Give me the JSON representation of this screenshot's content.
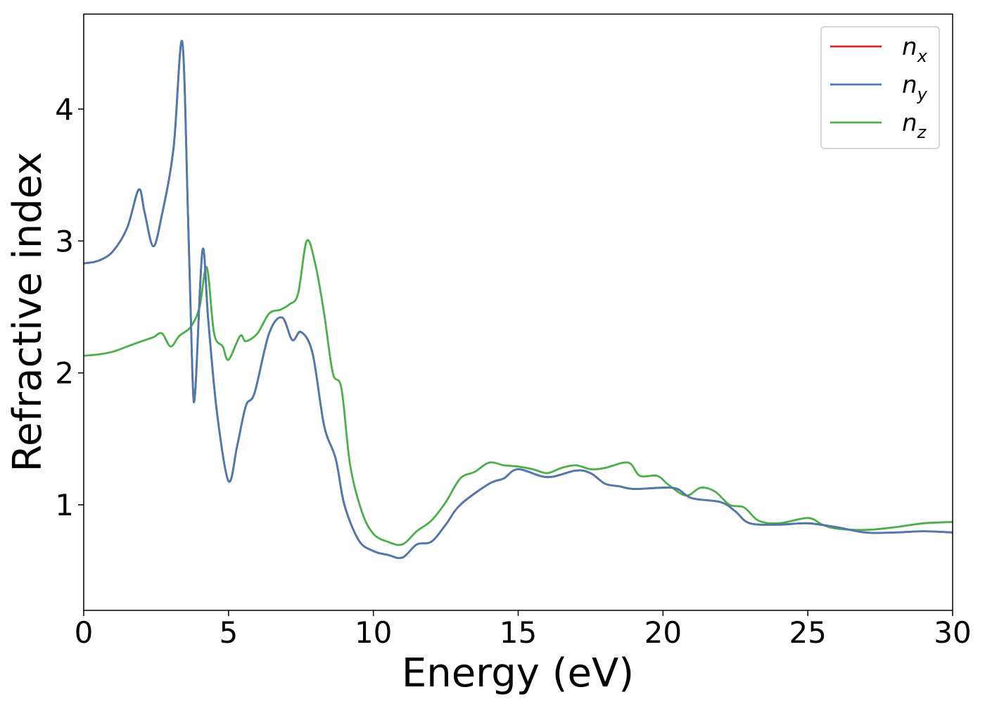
{
  "chart_data": {
    "type": "line",
    "title": "",
    "xlabel": "Energy (eV)",
    "ylabel": "Refractive index",
    "xlim": [
      0,
      30
    ],
    "ylim": [
      0.2,
      4.72
    ],
    "xticks": [
      0,
      5,
      10,
      15,
      20,
      25,
      30
    ],
    "yticks": [
      1,
      2,
      3,
      4
    ],
    "xtick_labels": [
      "0",
      "5",
      "10",
      "15",
      "20",
      "25",
      "30"
    ],
    "ytick_labels": [
      "1",
      "2",
      "3",
      "4"
    ],
    "grid": false,
    "legend_position": "top-right",
    "series": [
      {
        "name": "n",
        "subscript": "x",
        "color": "#d62728",
        "points": [
          [
            0,
            2.83
          ],
          [
            0.5,
            2.85
          ],
          [
            1,
            2.92
          ],
          [
            1.5,
            3.1
          ],
          [
            1.9,
            3.39
          ],
          [
            2.1,
            3.22
          ],
          [
            2.4,
            2.96
          ],
          [
            2.7,
            3.2
          ],
          [
            3.1,
            3.7
          ],
          [
            3.4,
            4.51
          ],
          [
            3.6,
            3.2
          ],
          [
            3.75,
            2.0
          ],
          [
            3.85,
            1.86
          ],
          [
            4.1,
            2.93
          ],
          [
            4.3,
            2.4
          ],
          [
            4.6,
            1.7
          ],
          [
            5.0,
            1.18
          ],
          [
            5.3,
            1.45
          ],
          [
            5.6,
            1.75
          ],
          [
            5.9,
            1.85
          ],
          [
            6.4,
            2.3
          ],
          [
            6.85,
            2.42
          ],
          [
            7.2,
            2.25
          ],
          [
            7.5,
            2.31
          ],
          [
            7.9,
            2.15
          ],
          [
            8.3,
            1.6
          ],
          [
            8.7,
            1.35
          ],
          [
            9.0,
            1.0
          ],
          [
            9.5,
            0.73
          ],
          [
            10,
            0.65
          ],
          [
            10.5,
            0.62
          ],
          [
            11,
            0.6
          ],
          [
            11.5,
            0.7
          ],
          [
            12,
            0.72
          ],
          [
            12.5,
            0.85
          ],
          [
            13,
            1.0
          ],
          [
            14,
            1.16
          ],
          [
            14.5,
            1.2
          ],
          [
            15,
            1.27
          ],
          [
            16,
            1.21
          ],
          [
            17,
            1.26
          ],
          [
            17.5,
            1.24
          ],
          [
            18,
            1.16
          ],
          [
            18.5,
            1.14
          ],
          [
            19,
            1.12
          ],
          [
            20,
            1.13
          ],
          [
            20.5,
            1.12
          ],
          [
            21,
            1.05
          ],
          [
            22,
            1.02
          ],
          [
            22.5,
            0.95
          ],
          [
            23,
            0.86
          ],
          [
            24,
            0.85
          ],
          [
            25,
            0.86
          ],
          [
            26,
            0.83
          ],
          [
            27,
            0.79
          ],
          [
            28,
            0.79
          ],
          [
            29,
            0.8
          ],
          [
            30,
            0.79
          ]
        ]
      },
      {
        "name": "n",
        "subscript": "y",
        "color": "#4a7ab0",
        "points": [
          [
            0,
            2.83
          ],
          [
            0.5,
            2.85
          ],
          [
            1,
            2.92
          ],
          [
            1.5,
            3.1
          ],
          [
            1.9,
            3.39
          ],
          [
            2.1,
            3.22
          ],
          [
            2.4,
            2.96
          ],
          [
            2.7,
            3.2
          ],
          [
            3.1,
            3.7
          ],
          [
            3.4,
            4.51
          ],
          [
            3.6,
            3.2
          ],
          [
            3.75,
            2.0
          ],
          [
            3.85,
            1.86
          ],
          [
            4.1,
            2.93
          ],
          [
            4.3,
            2.4
          ],
          [
            4.6,
            1.7
          ],
          [
            5.0,
            1.18
          ],
          [
            5.3,
            1.45
          ],
          [
            5.6,
            1.75
          ],
          [
            5.9,
            1.85
          ],
          [
            6.4,
            2.3
          ],
          [
            6.85,
            2.42
          ],
          [
            7.2,
            2.25
          ],
          [
            7.5,
            2.31
          ],
          [
            7.9,
            2.15
          ],
          [
            8.3,
            1.6
          ],
          [
            8.7,
            1.35
          ],
          [
            9.0,
            1.0
          ],
          [
            9.5,
            0.73
          ],
          [
            10,
            0.65
          ],
          [
            10.5,
            0.62
          ],
          [
            11,
            0.6
          ],
          [
            11.5,
            0.7
          ],
          [
            12,
            0.72
          ],
          [
            12.5,
            0.85
          ],
          [
            13,
            1.0
          ],
          [
            14,
            1.16
          ],
          [
            14.5,
            1.2
          ],
          [
            15,
            1.27
          ],
          [
            16,
            1.21
          ],
          [
            17,
            1.26
          ],
          [
            17.5,
            1.24
          ],
          [
            18,
            1.16
          ],
          [
            18.5,
            1.14
          ],
          [
            19,
            1.12
          ],
          [
            20,
            1.13
          ],
          [
            20.5,
            1.12
          ],
          [
            21,
            1.05
          ],
          [
            22,
            1.02
          ],
          [
            22.5,
            0.95
          ],
          [
            23,
            0.86
          ],
          [
            24,
            0.85
          ],
          [
            25,
            0.86
          ],
          [
            26,
            0.83
          ],
          [
            27,
            0.79
          ],
          [
            28,
            0.79
          ],
          [
            29,
            0.8
          ],
          [
            30,
            0.79
          ]
        ]
      },
      {
        "name": "n",
        "subscript": "z",
        "color": "#4daf4a",
        "points": [
          [
            0,
            2.13
          ],
          [
            0.5,
            2.14
          ],
          [
            1,
            2.16
          ],
          [
            1.5,
            2.2
          ],
          [
            2,
            2.24
          ],
          [
            2.4,
            2.27
          ],
          [
            2.7,
            2.3
          ],
          [
            3.0,
            2.2
          ],
          [
            3.3,
            2.28
          ],
          [
            3.7,
            2.35
          ],
          [
            4.0,
            2.5
          ],
          [
            4.25,
            2.8
          ],
          [
            4.5,
            2.3
          ],
          [
            4.8,
            2.2
          ],
          [
            5.0,
            2.1
          ],
          [
            5.4,
            2.28
          ],
          [
            5.6,
            2.24
          ],
          [
            6.0,
            2.3
          ],
          [
            6.4,
            2.45
          ],
          [
            6.8,
            2.48
          ],
          [
            7.1,
            2.52
          ],
          [
            7.4,
            2.6
          ],
          [
            7.7,
            3.0
          ],
          [
            8.0,
            2.82
          ],
          [
            8.3,
            2.45
          ],
          [
            8.6,
            2.0
          ],
          [
            8.9,
            1.88
          ],
          [
            9.2,
            1.3
          ],
          [
            9.6,
            0.95
          ],
          [
            10,
            0.78
          ],
          [
            10.5,
            0.72
          ],
          [
            11,
            0.7
          ],
          [
            11.5,
            0.8
          ],
          [
            12,
            0.88
          ],
          [
            12.5,
            1.02
          ],
          [
            13,
            1.2
          ],
          [
            13.5,
            1.25
          ],
          [
            14,
            1.32
          ],
          [
            14.5,
            1.3
          ],
          [
            15,
            1.29
          ],
          [
            15.5,
            1.27
          ],
          [
            16,
            1.24
          ],
          [
            16.5,
            1.28
          ],
          [
            17,
            1.3
          ],
          [
            17.5,
            1.27
          ],
          [
            18,
            1.28
          ],
          [
            18.8,
            1.32
          ],
          [
            19.2,
            1.22
          ],
          [
            19.8,
            1.22
          ],
          [
            20.2,
            1.15
          ],
          [
            20.8,
            1.07
          ],
          [
            21.3,
            1.13
          ],
          [
            21.8,
            1.1
          ],
          [
            22.3,
            1.0
          ],
          [
            22.8,
            0.98
          ],
          [
            23.3,
            0.88
          ],
          [
            24,
            0.86
          ],
          [
            25,
            0.9
          ],
          [
            25.5,
            0.85
          ],
          [
            26,
            0.82
          ],
          [
            27,
            0.81
          ],
          [
            28,
            0.83
          ],
          [
            29,
            0.86
          ],
          [
            30,
            0.87
          ]
        ]
      }
    ]
  }
}
